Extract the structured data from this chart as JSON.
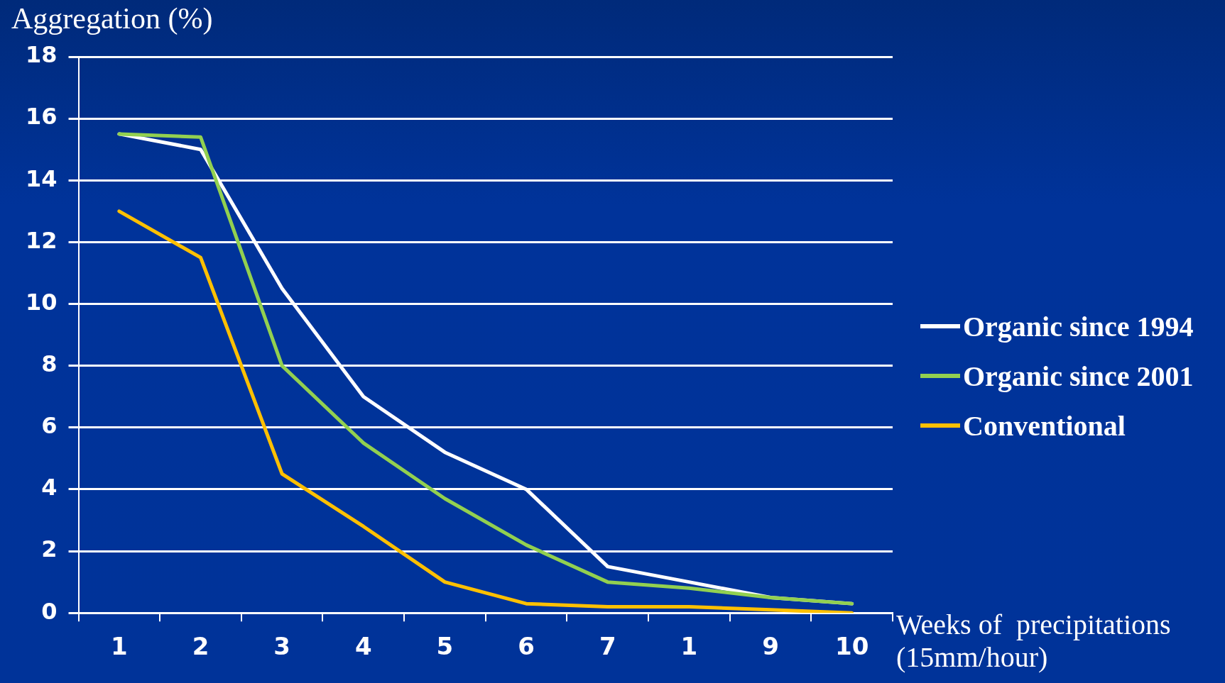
{
  "chart_data": {
    "type": "line",
    "ylabel": "Aggregation (%)",
    "xlabel": "Weeks of  precipitations\n(15mm/hour)",
    "categories": [
      "1",
      "2",
      "3",
      "4",
      "5",
      "6",
      "7",
      "1",
      "9",
      "10"
    ],
    "series": [
      {
        "name": "Organic since 1994",
        "color": "#ffffff",
        "values": [
          15.5,
          15.0,
          10.5,
          7.0,
          5.2,
          4.0,
          1.5,
          1.0,
          0.5,
          0.3
        ]
      },
      {
        "name": "Organic since 2001",
        "color": "#92d050",
        "values": [
          15.5,
          15.4,
          8.0,
          5.5,
          3.7,
          2.2,
          1.0,
          0.8,
          0.5,
          0.3
        ]
      },
      {
        "name": "Conventional",
        "color": "#ffc000",
        "values": [
          13.0,
          11.5,
          4.5,
          2.8,
          1.0,
          0.3,
          0.2,
          0.2,
          0.1,
          0.0
        ]
      }
    ],
    "ylim": [
      0,
      18
    ],
    "yticks": [
      0,
      2,
      4,
      6,
      8,
      10,
      12,
      14,
      16,
      18
    ],
    "grid": "y",
    "legend": "right",
    "marker": "none",
    "line_style": "solid"
  }
}
